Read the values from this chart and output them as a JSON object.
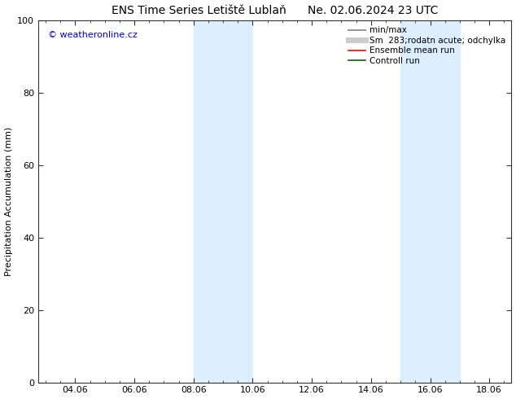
{
  "title": "ENS Time Series Letiště Lublaň      Ne. 02.06.2024 23 UTC",
  "ylabel": "Precipitation Accumulation (mm)",
  "watermark": "© weatheronline.cz",
  "watermark_color": "#0000cc",
  "ylim": [
    0,
    100
  ],
  "xlim_start": 2.75,
  "xlim_end": 18.75,
  "xticks": [
    4.0,
    6.0,
    8.0,
    10.0,
    12.0,
    14.0,
    16.0,
    18.0
  ],
  "xticklabels": [
    "04.06",
    "06.06",
    "08.06",
    "10.06",
    "12.06",
    "14.06",
    "16.06",
    "18.06"
  ],
  "yticks": [
    0,
    20,
    40,
    60,
    80,
    100
  ],
  "bg_color": "#ffffff",
  "plot_bg_color": "#ffffff",
  "shaded_bands": [
    {
      "x_start": 8.0,
      "x_end": 9.0,
      "color": "#ddeeff"
    },
    {
      "x_start": 9.0,
      "x_end": 10.0,
      "color": "#ddeeff"
    },
    {
      "x_start": 15.0,
      "x_end": 16.0,
      "color": "#ddeeff"
    },
    {
      "x_start": 16.0,
      "x_end": 17.0,
      "color": "#ddeeff"
    }
  ],
  "legend_entries": [
    {
      "label": "min/max",
      "color": "#999999",
      "linewidth": 1.5,
      "linestyle": "-"
    },
    {
      "label": "Sm  283;rodatn acute; odchylka",
      "color": "#cccccc",
      "linewidth": 5,
      "linestyle": "-"
    },
    {
      "label": "Ensemble mean run",
      "color": "#ff0000",
      "linewidth": 1.2,
      "linestyle": "-"
    },
    {
      "label": "Controll run",
      "color": "#006600",
      "linewidth": 1.2,
      "linestyle": "-"
    }
  ],
  "title_fontsize": 10,
  "axis_label_fontsize": 8,
  "tick_fontsize": 8,
  "watermark_fontsize": 8,
  "legend_fontsize": 7.5
}
